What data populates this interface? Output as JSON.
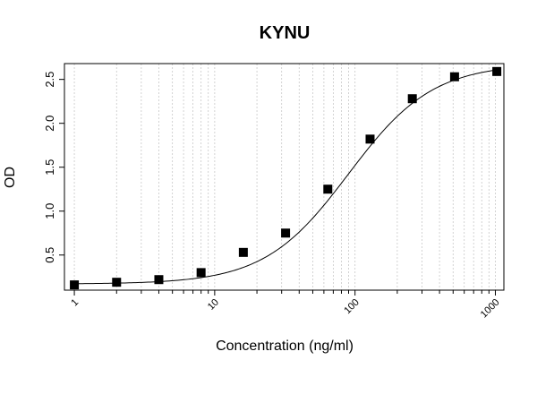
{
  "chart_data": {
    "type": "scatter",
    "title": "KYNU",
    "xlabel": "Concentration (ng/ml)",
    "ylabel": "OD",
    "x_scale": "log",
    "xlim": [
      0.85,
      1150
    ],
    "ylim": [
      0.1,
      2.68
    ],
    "x_ticks": [
      1,
      10,
      100,
      1000
    ],
    "x_tick_labels": [
      "1",
      "10",
      "100",
      "1000"
    ],
    "y_ticks": [
      0.5,
      1.0,
      1.5,
      2.0,
      2.5
    ],
    "y_tick_labels": [
      "0.5",
      "1.0",
      "1.5",
      "2.0",
      "2.5"
    ],
    "grid": "vertical dotted at each log minor tick",
    "series": [
      {
        "x": [
          1,
          2,
          4,
          8,
          16,
          32,
          64,
          128,
          256,
          512,
          1024
        ],
        "y": [
          0.16,
          0.19,
          0.22,
          0.3,
          0.53,
          0.75,
          1.25,
          1.82,
          2.28,
          2.53,
          2.59
        ]
      }
    ],
    "fit_curve": "4-parameter logistic",
    "marker_color": "#000000",
    "line_color": "#000000"
  }
}
